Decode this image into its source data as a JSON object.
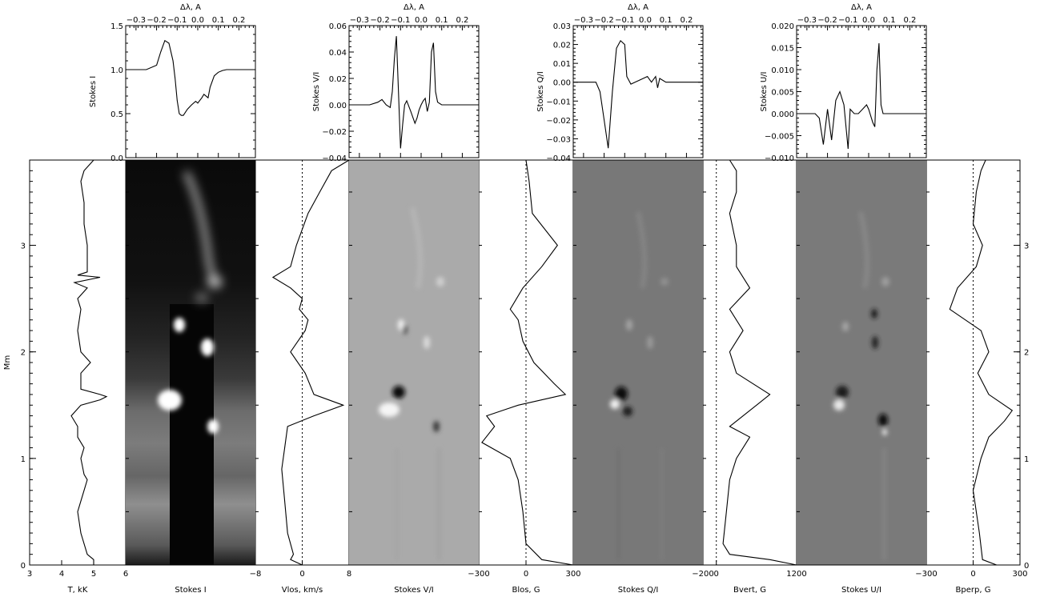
{
  "figure": {
    "height_axis_label": "Mm",
    "height_ticks": [
      "0",
      "1",
      "2",
      "3"
    ],
    "wavelength_axis_label": "Δλ, A",
    "wavelength_ticks": [
      "−0.3",
      "−0.2",
      "−0.1",
      "0.0",
      "0.1",
      "0.2"
    ]
  },
  "colors": {
    "image_bg_V": "#aaaaaa",
    "image_bg_Q": "#787878",
    "image_bg_U": "#7a7a7a",
    "image_bg_I": "#0b0b0b"
  },
  "chart_data": [
    {
      "type": "line",
      "name": "stokes-i-profile",
      "xlabel": "Δλ, A",
      "ylabel": "Stokes I",
      "xlim": [
        -0.35,
        0.28
      ],
      "ylim": [
        0.0,
        1.5
      ],
      "y_ticks": [
        "0.0",
        "0.5",
        "1.0",
        "1.5"
      ],
      "y_tick_values": [
        0.0,
        0.5,
        1.0,
        1.5
      ],
      "x": [
        -0.35,
        -0.3,
        -0.25,
        -0.2,
        -0.18,
        -0.16,
        -0.14,
        -0.12,
        -0.11,
        -0.1,
        -0.09,
        -0.08,
        -0.07,
        -0.05,
        -0.03,
        -0.01,
        0.0,
        0.02,
        0.03,
        0.05,
        0.06,
        0.08,
        0.1,
        0.12,
        0.14,
        0.18,
        0.22,
        0.28
      ],
      "y": [
        1.0,
        1.0,
        1.0,
        1.05,
        1.2,
        1.33,
        1.3,
        1.1,
        0.9,
        0.65,
        0.5,
        0.48,
        0.48,
        0.55,
        0.6,
        0.64,
        0.62,
        0.68,
        0.72,
        0.68,
        0.8,
        0.93,
        0.97,
        0.99,
        1.0,
        1.0,
        1.0,
        1.0
      ]
    },
    {
      "type": "line",
      "name": "stokes-v-profile",
      "xlabel": "Δλ, A",
      "ylabel": "Stokes V/I",
      "xlim": [
        -0.35,
        0.28
      ],
      "ylim": [
        -0.04,
        0.06
      ],
      "y_ticks": [
        "−0.04",
        "−0.02",
        "0.00",
        "0.02",
        "0.04",
        "0.06"
      ],
      "y_tick_values": [
        -0.04,
        -0.02,
        0.0,
        0.02,
        0.04,
        0.06
      ],
      "x": [
        -0.35,
        -0.25,
        -0.21,
        -0.19,
        -0.17,
        -0.15,
        -0.14,
        -0.13,
        -0.12,
        -0.11,
        -0.1,
        -0.09,
        -0.08,
        -0.07,
        -0.05,
        -0.03,
        -0.02,
        -0.01,
        0.0,
        0.01,
        0.02,
        0.03,
        0.04,
        0.05,
        0.06,
        0.07,
        0.08,
        0.1,
        0.15,
        0.28
      ],
      "y": [
        0.0,
        0.0,
        0.002,
        0.004,
        0.0,
        -0.002,
        0.01,
        0.035,
        0.052,
        0.01,
        -0.033,
        -0.015,
        0.0,
        0.003,
        -0.005,
        -0.014,
        -0.01,
        -0.004,
        0.0,
        0.003,
        0.005,
        -0.005,
        0.002,
        0.04,
        0.047,
        0.01,
        0.002,
        0.0,
        0.0,
        0.0
      ]
    },
    {
      "type": "line",
      "name": "stokes-q-profile",
      "xlabel": "Δλ, A",
      "ylabel": "Stokes Q/I",
      "xlim": [
        -0.35,
        0.28
      ],
      "ylim": [
        -0.04,
        0.03
      ],
      "y_ticks": [
        "−0.04",
        "−0.03",
        "−0.02",
        "−0.01",
        "0.00",
        "0.01",
        "0.02",
        "0.03"
      ],
      "y_tick_values": [
        -0.04,
        -0.03,
        -0.02,
        -0.01,
        0.0,
        0.01,
        0.02,
        0.03
      ],
      "x": [
        -0.35,
        -0.28,
        -0.24,
        -0.22,
        -0.2,
        -0.18,
        -0.16,
        -0.14,
        -0.12,
        -0.1,
        -0.09,
        -0.07,
        -0.05,
        -0.03,
        -0.01,
        0.01,
        0.03,
        0.05,
        0.06,
        0.07,
        0.1,
        0.28
      ],
      "y": [
        0.0,
        0.0,
        0.0,
        -0.005,
        -0.02,
        -0.035,
        -0.005,
        0.018,
        0.022,
        0.02,
        0.003,
        -0.001,
        0.0,
        0.001,
        0.002,
        0.003,
        0.0,
        0.003,
        -0.003,
        0.002,
        0.0,
        0.0
      ]
    },
    {
      "type": "line",
      "name": "stokes-u-profile",
      "xlabel": "Δλ, A",
      "ylabel": "Stokes U/I",
      "xlim": [
        -0.35,
        0.28
      ],
      "ylim": [
        -0.01,
        0.02
      ],
      "y_ticks": [
        "−0.010",
        "−0.005",
        "0.000",
        "0.005",
        "0.010",
        "0.015",
        "0.020"
      ],
      "y_tick_values": [
        -0.01,
        -0.005,
        0.0,
        0.005,
        0.01,
        0.015,
        0.02
      ],
      "x": [
        -0.35,
        -0.26,
        -0.24,
        -0.22,
        -0.2,
        -0.18,
        -0.16,
        -0.14,
        -0.12,
        -0.1,
        -0.09,
        -0.07,
        -0.05,
        -0.03,
        -0.01,
        0.0,
        0.02,
        0.03,
        0.04,
        0.05,
        0.06,
        0.07,
        0.09,
        0.28
      ],
      "y": [
        0.0,
        0.0,
        -0.001,
        -0.007,
        0.001,
        -0.006,
        0.003,
        0.005,
        0.002,
        -0.008,
        0.001,
        0.0,
        0.0,
        0.001,
        0.002,
        0.001,
        -0.002,
        -0.003,
        0.01,
        0.016,
        0.002,
        0.0,
        0.0,
        0.0
      ]
    },
    {
      "type": "line",
      "name": "temperature-vs-height",
      "xlabel": "T, kK",
      "ylabel": "Mm",
      "xlim": [
        3,
        6
      ],
      "ylim": [
        0,
        3.8
      ],
      "x_ticks": [
        "3",
        "4",
        "5",
        "6"
      ],
      "x_tick_values": [
        3,
        4,
        5,
        6
      ],
      "y": [
        0.0,
        0.05,
        0.1,
        0.3,
        0.5,
        0.7,
        0.8,
        0.85,
        1.0,
        1.1,
        1.2,
        1.3,
        1.4,
        1.5,
        1.55,
        1.58,
        1.6,
        1.65,
        1.8,
        1.9,
        2.0,
        2.2,
        2.4,
        2.5,
        2.6,
        2.65,
        2.7,
        2.72,
        2.75,
        2.8,
        3.0,
        3.2,
        3.4,
        3.6,
        3.7,
        3.8
      ],
      "x": [
        5.0,
        5.0,
        4.8,
        4.6,
        4.5,
        4.7,
        4.8,
        4.7,
        4.6,
        4.7,
        4.5,
        4.5,
        4.3,
        4.6,
        5.2,
        5.4,
        5.2,
        4.6,
        4.6,
        4.9,
        4.6,
        4.5,
        4.6,
        4.5,
        4.8,
        4.4,
        5.2,
        4.5,
        4.8,
        4.8,
        4.8,
        4.7,
        4.7,
        4.6,
        4.7,
        5.0
      ]
    },
    {
      "type": "line",
      "name": "vlos-vs-height",
      "xlabel": "Vlos, km/s",
      "ylabel": "Mm",
      "xlim": [
        -8,
        8
      ],
      "ylim": [
        0,
        3.8
      ],
      "zero_line": 0,
      "x_ticks": [
        "−8",
        "0",
        "8"
      ],
      "x_tick_values": [
        -8,
        0,
        8
      ],
      "y": [
        0.0,
        0.05,
        0.1,
        0.3,
        0.6,
        0.9,
        1.1,
        1.3,
        1.4,
        1.5,
        1.6,
        1.8,
        2.0,
        2.2,
        2.3,
        2.4,
        2.5,
        2.6,
        2.7,
        2.8,
        3.0,
        3.3,
        3.5,
        3.7,
        3.8
      ],
      "x": [
        0.0,
        -2.0,
        -1.5,
        -2.5,
        -3.0,
        -3.5,
        -3.0,
        -2.5,
        2.0,
        7.0,
        2.0,
        0.5,
        -2.0,
        0.5,
        1.0,
        -0.5,
        0.0,
        -2.0,
        -5.0,
        -2.0,
        -1.0,
        1.0,
        3.0,
        5.0,
        8.0
      ]
    },
    {
      "type": "line",
      "name": "blos-vs-height",
      "xlabel": "Blos, G",
      "ylabel": "Mm",
      "xlim": [
        -300,
        300
      ],
      "ylim": [
        0,
        3.8
      ],
      "zero_line": 0,
      "x_ticks": [
        "−300",
        "0",
        "300"
      ],
      "x_tick_values": [
        -300,
        0,
        300
      ],
      "y": [
        0.0,
        0.05,
        0.2,
        0.5,
        0.8,
        1.0,
        1.15,
        1.3,
        1.4,
        1.5,
        1.6,
        1.7,
        1.9,
        2.1,
        2.3,
        2.4,
        2.6,
        2.8,
        3.0,
        3.3,
        3.6,
        3.8
      ],
      "x": [
        300,
        100,
        0,
        -20,
        -50,
        -100,
        -280,
        -200,
        -250,
        -50,
        250,
        180,
        50,
        -20,
        -50,
        -100,
        -20,
        100,
        200,
        40,
        20,
        0
      ]
    },
    {
      "type": "line",
      "name": "bvert-vs-height",
      "xlabel": "Bvert, G",
      "ylabel": "Mm",
      "xlim": [
        -200,
        1200
      ],
      "ylim": [
        0,
        3.8
      ],
      "zero_line": 0,
      "x_ticks": [
        "−200",
        "0",
        "1200"
      ],
      "x_tick_values": [
        -200,
        0,
        1200
      ],
      "y": [
        0.0,
        0.05,
        0.1,
        0.2,
        0.5,
        0.8,
        1.0,
        1.2,
        1.3,
        1.5,
        1.6,
        1.8,
        2.0,
        2.2,
        2.4,
        2.6,
        2.8,
        3.0,
        3.3,
        3.5,
        3.7,
        3.8
      ],
      "x": [
        1200,
        800,
        200,
        100,
        150,
        200,
        300,
        500,
        200,
        600,
        800,
        300,
        200,
        400,
        200,
        500,
        300,
        300,
        200,
        300,
        300,
        200
      ]
    },
    {
      "type": "line",
      "name": "bperp-vs-height",
      "xlabel": "Bperp, G",
      "ylabel": "Mm",
      "xlim": [
        -300,
        300
      ],
      "ylim": [
        0,
        3.8
      ],
      "zero_line": 0,
      "x_ticks": [
        "−300",
        "0",
        "300"
      ],
      "x_tick_values": [
        -300,
        0,
        300
      ],
      "y": [
        0.0,
        0.05,
        0.3,
        0.7,
        1.0,
        1.2,
        1.35,
        1.45,
        1.6,
        1.8,
        2.0,
        2.2,
        2.4,
        2.6,
        2.8,
        3.0,
        3.2,
        3.5,
        3.7,
        3.8
      ],
      "x": [
        150,
        60,
        40,
        0,
        50,
        100,
        200,
        250,
        100,
        30,
        100,
        50,
        -150,
        -100,
        20,
        60,
        0,
        20,
        50,
        80
      ]
    }
  ],
  "images": [
    {
      "name": "stokes-i-image",
      "xlabel": "Stokes I",
      "x_ticks": [
        "6",
        "−8"
      ]
    },
    {
      "name": "stokes-v-image",
      "xlabel": "Stokes V/I",
      "x_ticks": [
        "8",
        "−300"
      ]
    },
    {
      "name": "stokes-q-image",
      "xlabel": "Stokes Q/I",
      "x_ticks": [
        "300",
        "−200"
      ]
    },
    {
      "name": "stokes-u-image",
      "xlabel": "Stokes U/I",
      "x_ticks": [
        "1200",
        "−300"
      ]
    }
  ]
}
